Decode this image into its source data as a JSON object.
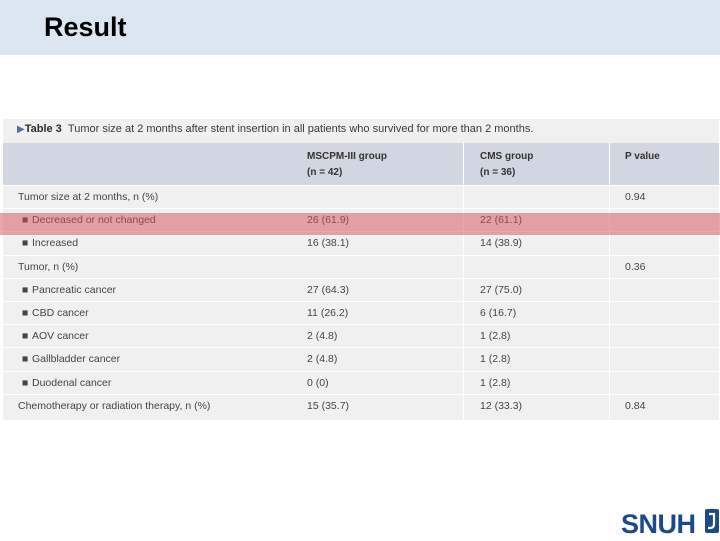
{
  "slide": {
    "title": "Result"
  },
  "table": {
    "caption_label": "Table 3",
    "caption_text": "Tumor size at 2 months after stent insertion in all patients who survived for more than 2 months.",
    "columns": [
      {
        "line1": "",
        "line2": ""
      },
      {
        "line1": "MSCPM-III group",
        "line2": "(n = 42)"
      },
      {
        "line1": "CMS group",
        "line2": "(n = 36)"
      },
      {
        "line1": "P value",
        "line2": ""
      }
    ],
    "rows": [
      {
        "label": "Tumor size at 2 months, n (%)",
        "bullet": false,
        "c1": "",
        "c2": "",
        "p": "0.94"
      },
      {
        "label": "Decreased or not changed",
        "bullet": true,
        "c1": "26 (61.9)",
        "c2": "22 (61.1)",
        "p": ""
      },
      {
        "label": "Increased",
        "bullet": true,
        "c1": "16 (38.1)",
        "c2": "14 (38.9)",
        "p": ""
      },
      {
        "label": "Tumor, n (%)",
        "bullet": false,
        "c1": "",
        "c2": "",
        "p": "0.36"
      },
      {
        "label": "Pancreatic cancer",
        "bullet": true,
        "c1": "27 (64.3)",
        "c2": "27 (75.0)",
        "p": ""
      },
      {
        "label": "CBD cancer",
        "bullet": true,
        "c1": "11 (26.2)",
        "c2": "6 (16.7)",
        "p": ""
      },
      {
        "label": "AOV cancer",
        "bullet": true,
        "c1": "2 (4.8)",
        "c2": "1 (2.8)",
        "p": ""
      },
      {
        "label": "Gallbladder cancer",
        "bullet": true,
        "c1": "2 (4.8)",
        "c2": "1 (2.8)",
        "p": ""
      },
      {
        "label": "Duodenal cancer",
        "bullet": true,
        "c1": "0 (0)",
        "c2": "1 (2.8)",
        "p": ""
      },
      {
        "label": "Chemotherapy or radiation therapy, n (%)",
        "bullet": false,
        "c1": "15 (35.7)",
        "c2": "12 (33.3)",
        "p": "0.84"
      }
    ]
  },
  "logo": {
    "text": "SNUH"
  },
  "colors": {
    "header_band": "#dce6f2",
    "highlight": "#d65055",
    "logo": "#1b4a8c"
  }
}
